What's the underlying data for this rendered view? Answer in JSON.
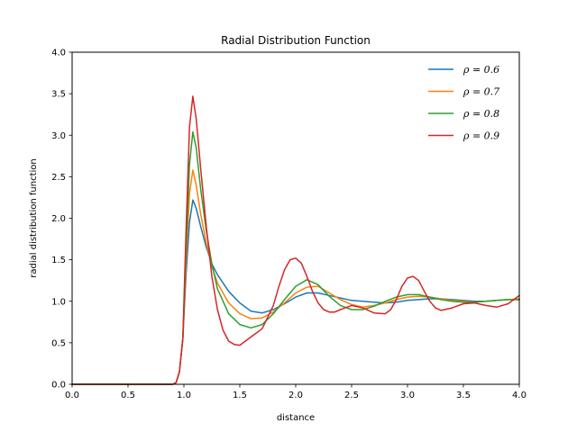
{
  "chart_data": {
    "type": "line",
    "title": "Radial Distribution Function",
    "xlabel": "distance",
    "ylabel": "radial distribution function",
    "xlim": [
      0,
      4
    ],
    "ylim": [
      0,
      4
    ],
    "xticks": [
      "0.0",
      "0.5",
      "1.0",
      "1.5",
      "2.0",
      "2.5",
      "3.0",
      "3.5",
      "4.0"
    ],
    "yticks": [
      "0.0",
      "0.5",
      "1.0",
      "1.5",
      "2.0",
      "2.5",
      "3.0",
      "3.5",
      "4.0"
    ],
    "grid": false,
    "legend": "top-right",
    "series": [
      {
        "name": "ρ = 0.6",
        "color": "#1f77b4",
        "x": [
          0,
          0.9,
          0.93,
          0.96,
          0.99,
          1.02,
          1.05,
          1.08,
          1.11,
          1.15,
          1.2,
          1.25,
          1.3,
          1.4,
          1.5,
          1.6,
          1.7,
          1.8,
          1.9,
          2.0,
          2.1,
          2.2,
          2.3,
          2.4,
          2.5,
          2.6,
          2.7,
          2.8,
          2.9,
          3.0,
          3.1,
          3.2,
          3.3,
          3.4,
          3.5,
          3.6,
          3.7,
          3.8,
          3.9,
          4.0
        ],
        "y": [
          0,
          0,
          0.02,
          0.15,
          0.55,
          1.35,
          1.95,
          2.22,
          2.12,
          1.9,
          1.65,
          1.45,
          1.32,
          1.12,
          0.98,
          0.88,
          0.86,
          0.9,
          0.97,
          1.05,
          1.1,
          1.1,
          1.07,
          1.04,
          1.01,
          1.0,
          0.99,
          0.98,
          0.99,
          1.01,
          1.02,
          1.03,
          1.03,
          1.02,
          1.01,
          1.0,
          1.0,
          1.01,
          1.02,
          1.02
        ]
      },
      {
        "name": "ρ = 0.7",
        "color": "#ff7f0e",
        "x": [
          0,
          0.9,
          0.93,
          0.96,
          0.99,
          1.02,
          1.05,
          1.08,
          1.11,
          1.15,
          1.2,
          1.25,
          1.3,
          1.4,
          1.5,
          1.6,
          1.7,
          1.8,
          1.9,
          2.0,
          2.1,
          2.2,
          2.3,
          2.4,
          2.5,
          2.6,
          2.7,
          2.8,
          2.9,
          3.0,
          3.1,
          3.2,
          3.3,
          3.4,
          3.5,
          3.6,
          3.7,
          3.8,
          3.9,
          4.0
        ],
        "y": [
          0,
          0,
          0.02,
          0.15,
          0.55,
          1.5,
          2.3,
          2.58,
          2.4,
          2.05,
          1.7,
          1.42,
          1.22,
          0.98,
          0.85,
          0.79,
          0.8,
          0.87,
          0.98,
          1.1,
          1.17,
          1.18,
          1.1,
          1.02,
          0.96,
          0.93,
          0.95,
          0.98,
          1.02,
          1.05,
          1.06,
          1.05,
          1.03,
          1.01,
          1.0,
          0.99,
          1.0,
          1.01,
          1.02,
          1.03
        ]
      },
      {
        "name": "ρ = 0.8",
        "color": "#2ca02c",
        "x": [
          0,
          0.9,
          0.93,
          0.96,
          0.99,
          1.02,
          1.05,
          1.08,
          1.11,
          1.15,
          1.2,
          1.25,
          1.3,
          1.4,
          1.5,
          1.6,
          1.7,
          1.8,
          1.9,
          2.0,
          2.1,
          2.2,
          2.3,
          2.4,
          2.5,
          2.6,
          2.7,
          2.8,
          2.9,
          3.0,
          3.1,
          3.2,
          3.3,
          3.4,
          3.5,
          3.6,
          3.7,
          3.8,
          3.9,
          4.0
        ],
        "y": [
          0,
          0,
          0.02,
          0.15,
          0.55,
          1.65,
          2.65,
          3.04,
          2.85,
          2.35,
          1.85,
          1.45,
          1.15,
          0.85,
          0.72,
          0.68,
          0.72,
          0.85,
          1.02,
          1.18,
          1.26,
          1.2,
          1.06,
          0.95,
          0.9,
          0.9,
          0.94,
          1.0,
          1.05,
          1.08,
          1.08,
          1.05,
          1.02,
          1.0,
          0.99,
          0.99,
          1.0,
          1.01,
          1.02,
          1.02
        ]
      },
      {
        "name": "ρ = 0.9",
        "color": "#d62728",
        "x": [
          0,
          0.9,
          0.93,
          0.96,
          0.99,
          1.02,
          1.05,
          1.08,
          1.11,
          1.15,
          1.2,
          1.25,
          1.3,
          1.35,
          1.4,
          1.45,
          1.5,
          1.55,
          1.6,
          1.7,
          1.8,
          1.85,
          1.9,
          1.95,
          2.0,
          2.05,
          2.1,
          2.15,
          2.2,
          2.25,
          2.3,
          2.35,
          2.4,
          2.5,
          2.6,
          2.7,
          2.8,
          2.85,
          2.9,
          2.95,
          3.0,
          3.05,
          3.1,
          3.15,
          3.2,
          3.25,
          3.3,
          3.4,
          3.5,
          3.6,
          3.7,
          3.8,
          3.9,
          4.0
        ],
        "y": [
          0,
          0,
          0.02,
          0.15,
          0.55,
          1.9,
          3.1,
          3.47,
          3.2,
          2.6,
          1.9,
          1.3,
          0.9,
          0.65,
          0.52,
          0.48,
          0.47,
          0.52,
          0.57,
          0.67,
          0.95,
          1.18,
          1.38,
          1.5,
          1.52,
          1.46,
          1.3,
          1.12,
          0.98,
          0.9,
          0.87,
          0.87,
          0.9,
          0.95,
          0.92,
          0.86,
          0.85,
          0.9,
          1.02,
          1.18,
          1.28,
          1.3,
          1.25,
          1.12,
          1.0,
          0.92,
          0.89,
          0.92,
          0.97,
          0.98,
          0.95,
          0.93,
          0.97,
          1.07
        ]
      }
    ]
  }
}
